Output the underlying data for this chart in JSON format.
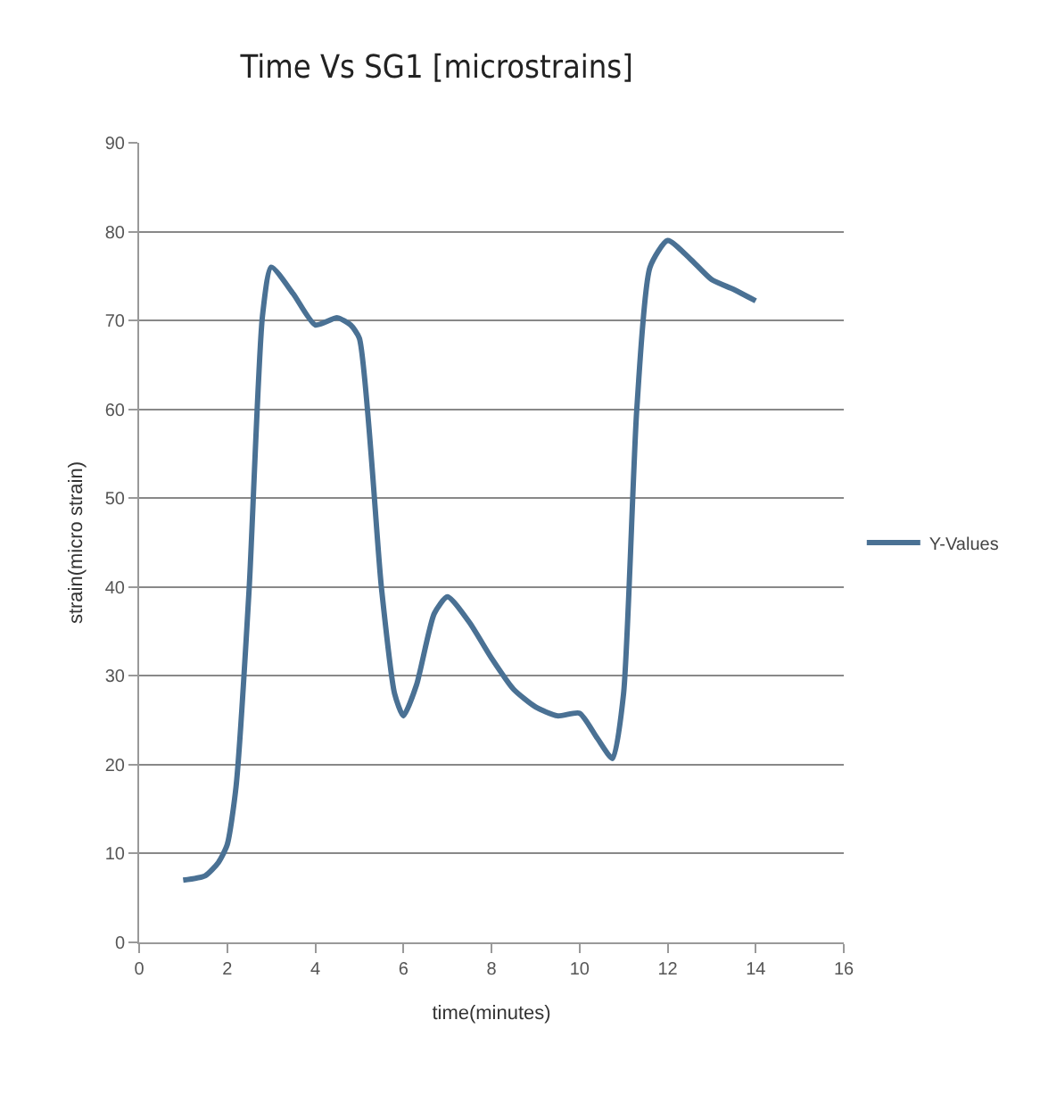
{
  "chart_data": {
    "type": "line",
    "title": "Time Vs SG1 [microstrains]",
    "xlabel": "time(minutes)",
    "ylabel": "strain(micro strain)",
    "series": [
      {
        "name": "Y-Values",
        "color": "#4a7194",
        "x": [
          1,
          1.5,
          1.8,
          2,
          2.2,
          2.5,
          2.8,
          3,
          3.5,
          4,
          4.5,
          4.8,
          5,
          5.5,
          5.8,
          6,
          6.3,
          6.7,
          7,
          7.5,
          8,
          8.5,
          9,
          9.5,
          10,
          10.4,
          10.75,
          11,
          11.3,
          11.6,
          12,
          12.5,
          13,
          13.5,
          14
        ],
        "values": [
          7,
          7.5,
          9,
          11,
          17.5,
          40,
          70.5,
          76,
          73,
          69.5,
          70.3,
          69.5,
          68,
          40,
          28,
          25.5,
          29,
          37,
          38.9,
          36,
          32,
          28.5,
          26.5,
          25.5,
          25.8,
          23,
          20.7,
          28,
          60,
          76,
          79,
          77,
          74.6,
          73.5,
          72.2
        ]
      }
    ],
    "xlim": [
      0,
      16
    ],
    "xticks": [
      0,
      2,
      4,
      6,
      8,
      10,
      12,
      14,
      16
    ],
    "ylim": [
      0,
      90
    ],
    "yticks": [
      0,
      10,
      20,
      30,
      40,
      50,
      60,
      70,
      80,
      90
    ],
    "grid": "y",
    "legend": "right",
    "marker": "none",
    "line_style": "solid"
  }
}
